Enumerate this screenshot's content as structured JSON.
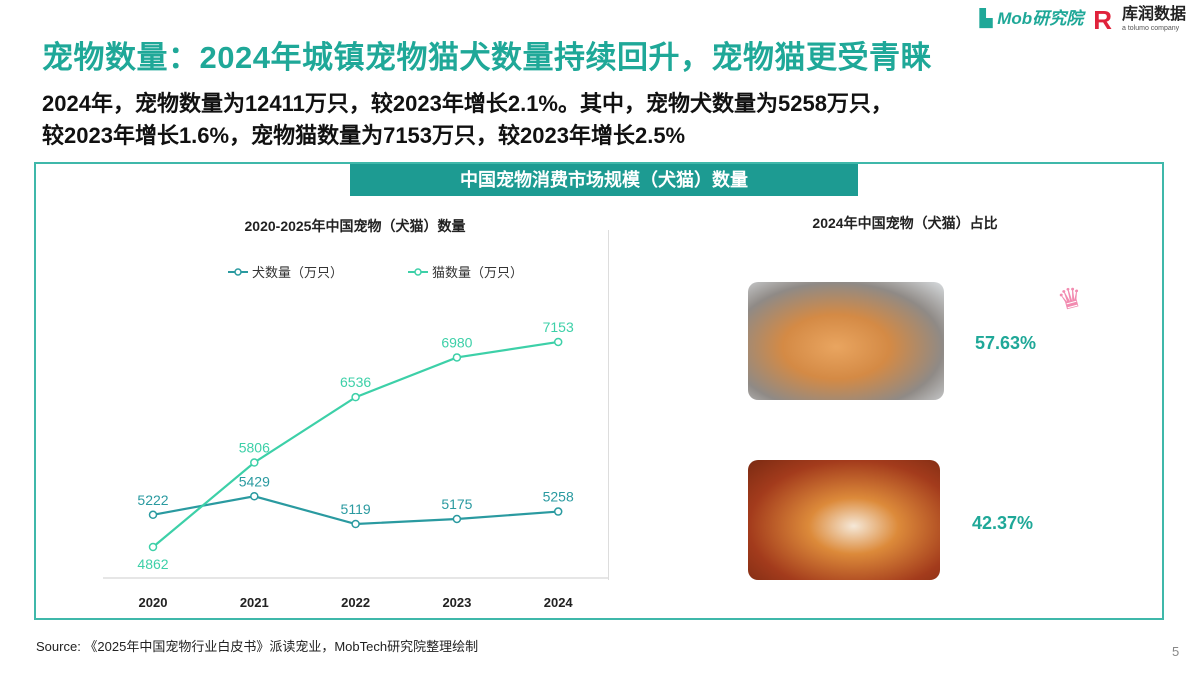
{
  "header": {
    "title": "宠物数量：2024年城镇宠物猫犬数量持续回升，宠物猫更受青睐",
    "subtitle_line1": "2024年，宠物数量为12411万只，较2023年增长2.1%。其中，宠物犬数量为5258万只，",
    "subtitle_line2": "较2023年增长1.6%，宠物猫数量为7153万只，较2023年增长2.5%"
  },
  "logos": {
    "mob": "Mob研究院",
    "kurun": "库润数据",
    "kurun_sub": "a tolumo company"
  },
  "banner": "中国宠物消费市场规模（犬猫）数量",
  "chart_data": {
    "type": "line",
    "title": "2020-2025年中国宠物（犬猫）数量",
    "categories": [
      "2020",
      "2021",
      "2022",
      "2023",
      "2024"
    ],
    "series": [
      {
        "name": "犬数量（万只）",
        "color": "#2a9aa0",
        "values": [
          5222,
          5429,
          5119,
          5175,
          5258
        ]
      },
      {
        "name": "猫数量（万只）",
        "color": "#3dd0a8",
        "values": [
          4862,
          5806,
          6536,
          6980,
          7153
        ]
      }
    ],
    "xlabel": "",
    "ylabel": "",
    "legend": "top",
    "grid": false
  },
  "pie": {
    "title": "2024年中国宠物（犬猫）占比",
    "cat_pct": "57.63%",
    "dog_pct": "42.37%"
  },
  "source": "Source: 《2025年中国宠物行业白皮书》派读宠业，MobTech研究院整理绘制",
  "page": "5",
  "colors": {
    "accent": "#1fa898",
    "banner": "#1d9b92"
  }
}
